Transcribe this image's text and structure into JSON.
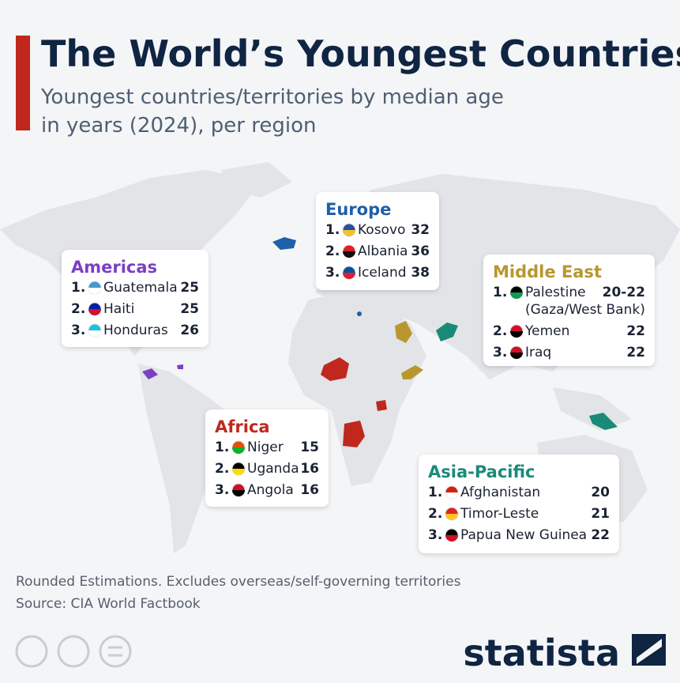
{
  "header": {
    "title": "The World’s Youngest Countries",
    "subtitle": [
      "Youngest countries/territories by median age",
      "in years (2024), per region"
    ]
  },
  "regions": [
    {
      "name": "Europe",
      "color": "#1f5fa8",
      "entries": [
        {
          "rank": "1.",
          "country": "Kosovo",
          "value": 32
        },
        {
          "rank": "2.",
          "country": "Albania",
          "value": 36
        },
        {
          "rank": "3.",
          "country": "Iceland",
          "value": 38
        }
      ]
    },
    {
      "name": "Americas",
      "color": "#7b3fc4",
      "entries": [
        {
          "rank": "1.",
          "country": "Guatemala",
          "value": 25
        },
        {
          "rank": "2.",
          "country": "Haiti",
          "value": 25
        },
        {
          "rank": "3.",
          "country": "Honduras",
          "value": 26
        }
      ]
    },
    {
      "name": "Middle East",
      "color": "#b8972e",
      "entries": [
        {
          "rank": "1.",
          "country": "Palestine",
          "note": "(Gaza/West Bank)",
          "value": "20-22"
        },
        {
          "rank": "2.",
          "country": "Yemen",
          "value": 22
        },
        {
          "rank": "3.",
          "country": "Iraq",
          "value": 22
        }
      ]
    },
    {
      "name": "Africa",
      "color": "#c0281e",
      "entries": [
        {
          "rank": "1.",
          "country": "Niger",
          "value": 15
        },
        {
          "rank": "2.",
          "country": "Uganda",
          "value": 16
        },
        {
          "rank": "3.",
          "country": "Angola",
          "value": 16
        }
      ]
    },
    {
      "name": "Asia-Pacific",
      "color": "#1a8a78",
      "entries": [
        {
          "rank": "1.",
          "country": "Afghanistan",
          "value": 20
        },
        {
          "rank": "2.",
          "country": "Timor-Leste",
          "value": 21
        },
        {
          "rank": "3.",
          "country": "Papua New Guinea",
          "value": 22
        }
      ]
    }
  ],
  "footer": {
    "note": "Rounded Estimations. Excludes overseas/self-governing territories",
    "source": "Source: CIA World Factbook",
    "brand": "statista"
  }
}
